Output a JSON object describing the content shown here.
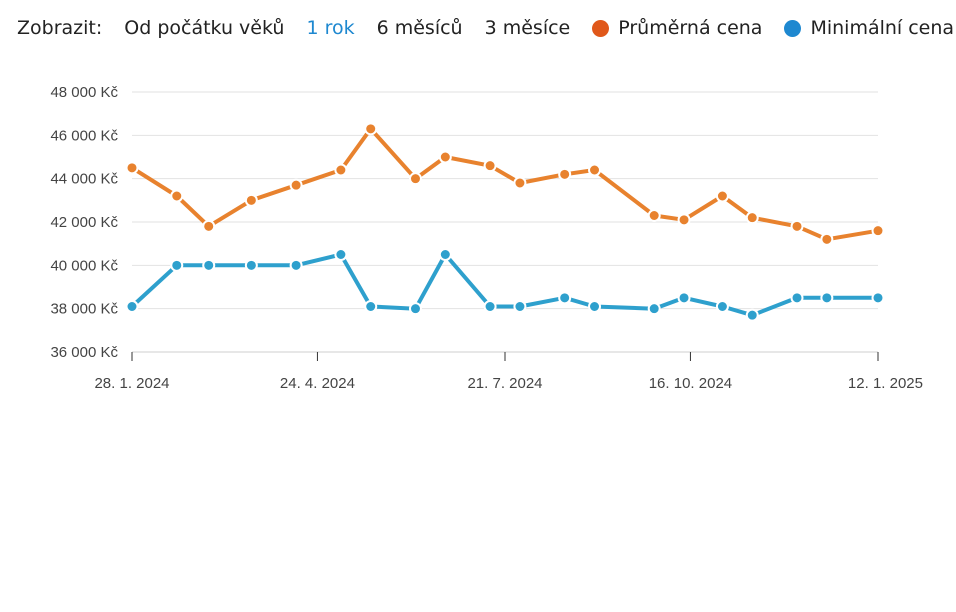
{
  "controls": {
    "label": "Zobrazit:",
    "ranges": [
      {
        "label": "Od počátku věků",
        "active": false
      },
      {
        "label": "1 rok",
        "active": true
      },
      {
        "label": "6 měsíců",
        "active": false
      },
      {
        "label": "3 měsíce",
        "active": false
      }
    ],
    "legend": [
      {
        "label": "Průměrná cena",
        "color": "#e0581a"
      },
      {
        "label": "Minimální cena",
        "color": "#1e88d0"
      }
    ]
  },
  "colors": {
    "accent": "#1e88d0",
    "avg_line": "#e8822e",
    "min_line": "#2ea0cd",
    "grid": "#e2e2e2"
  },
  "chart_data": {
    "type": "line",
    "x_axis": {
      "type": "date",
      "min": "2024-01-28",
      "max": "2025-01-12",
      "ticks": [
        "2024-01-28",
        "2024-04-24",
        "2024-07-21",
        "2024-10-16",
        "2025-01-12"
      ],
      "tick_labels": [
        "28. 1. 2024",
        "24. 4. 2024",
        "21. 7. 2024",
        "16. 10. 2024",
        "12. 1. 2025"
      ]
    },
    "y_axis": {
      "min": 36000,
      "max": 48000,
      "ticks": [
        36000,
        38000,
        40000,
        42000,
        44000,
        46000,
        48000
      ],
      "tick_labels": [
        "36 000 Kč",
        "38 000 Kč",
        "40 000 Kč",
        "42 000 Kč",
        "44 000 Kč",
        "46 000 Kč",
        "48 000 Kč"
      ]
    },
    "grid": true,
    "legend_position": "top",
    "series": [
      {
        "name": "Průměrná cena",
        "x": [
          "2024-01-28",
          "2024-02-18",
          "2024-03-04",
          "2024-03-24",
          "2024-04-14",
          "2024-05-05",
          "2024-05-19",
          "2024-06-09",
          "2024-06-23",
          "2024-07-14",
          "2024-07-28",
          "2024-08-18",
          "2024-09-01",
          "2024-09-29",
          "2024-10-13",
          "2024-10-31",
          "2024-11-14",
          "2024-12-05",
          "2024-12-19",
          "2025-01-12"
        ],
        "y": [
          44500,
          43200,
          41800,
          43000,
          43700,
          44400,
          46300,
          44000,
          45000,
          44600,
          43800,
          44200,
          44400,
          42300,
          42100,
          43200,
          42200,
          41800,
          41200,
          41600
        ]
      },
      {
        "name": "Minimální cena",
        "x": [
          "2024-01-28",
          "2024-02-18",
          "2024-03-04",
          "2024-03-24",
          "2024-04-14",
          "2024-05-05",
          "2024-05-19",
          "2024-06-09",
          "2024-06-23",
          "2024-07-14",
          "2024-07-28",
          "2024-08-18",
          "2024-09-01",
          "2024-09-29",
          "2024-10-13",
          "2024-10-31",
          "2024-11-14",
          "2024-12-05",
          "2024-12-19",
          "2025-01-12"
        ],
        "y": [
          38100,
          40000,
          40000,
          40000,
          40000,
          40500,
          38100,
          38000,
          40500,
          38100,
          38100,
          38500,
          38100,
          38000,
          38500,
          38100,
          37700,
          38500,
          38500,
          38500
        ]
      }
    ]
  }
}
